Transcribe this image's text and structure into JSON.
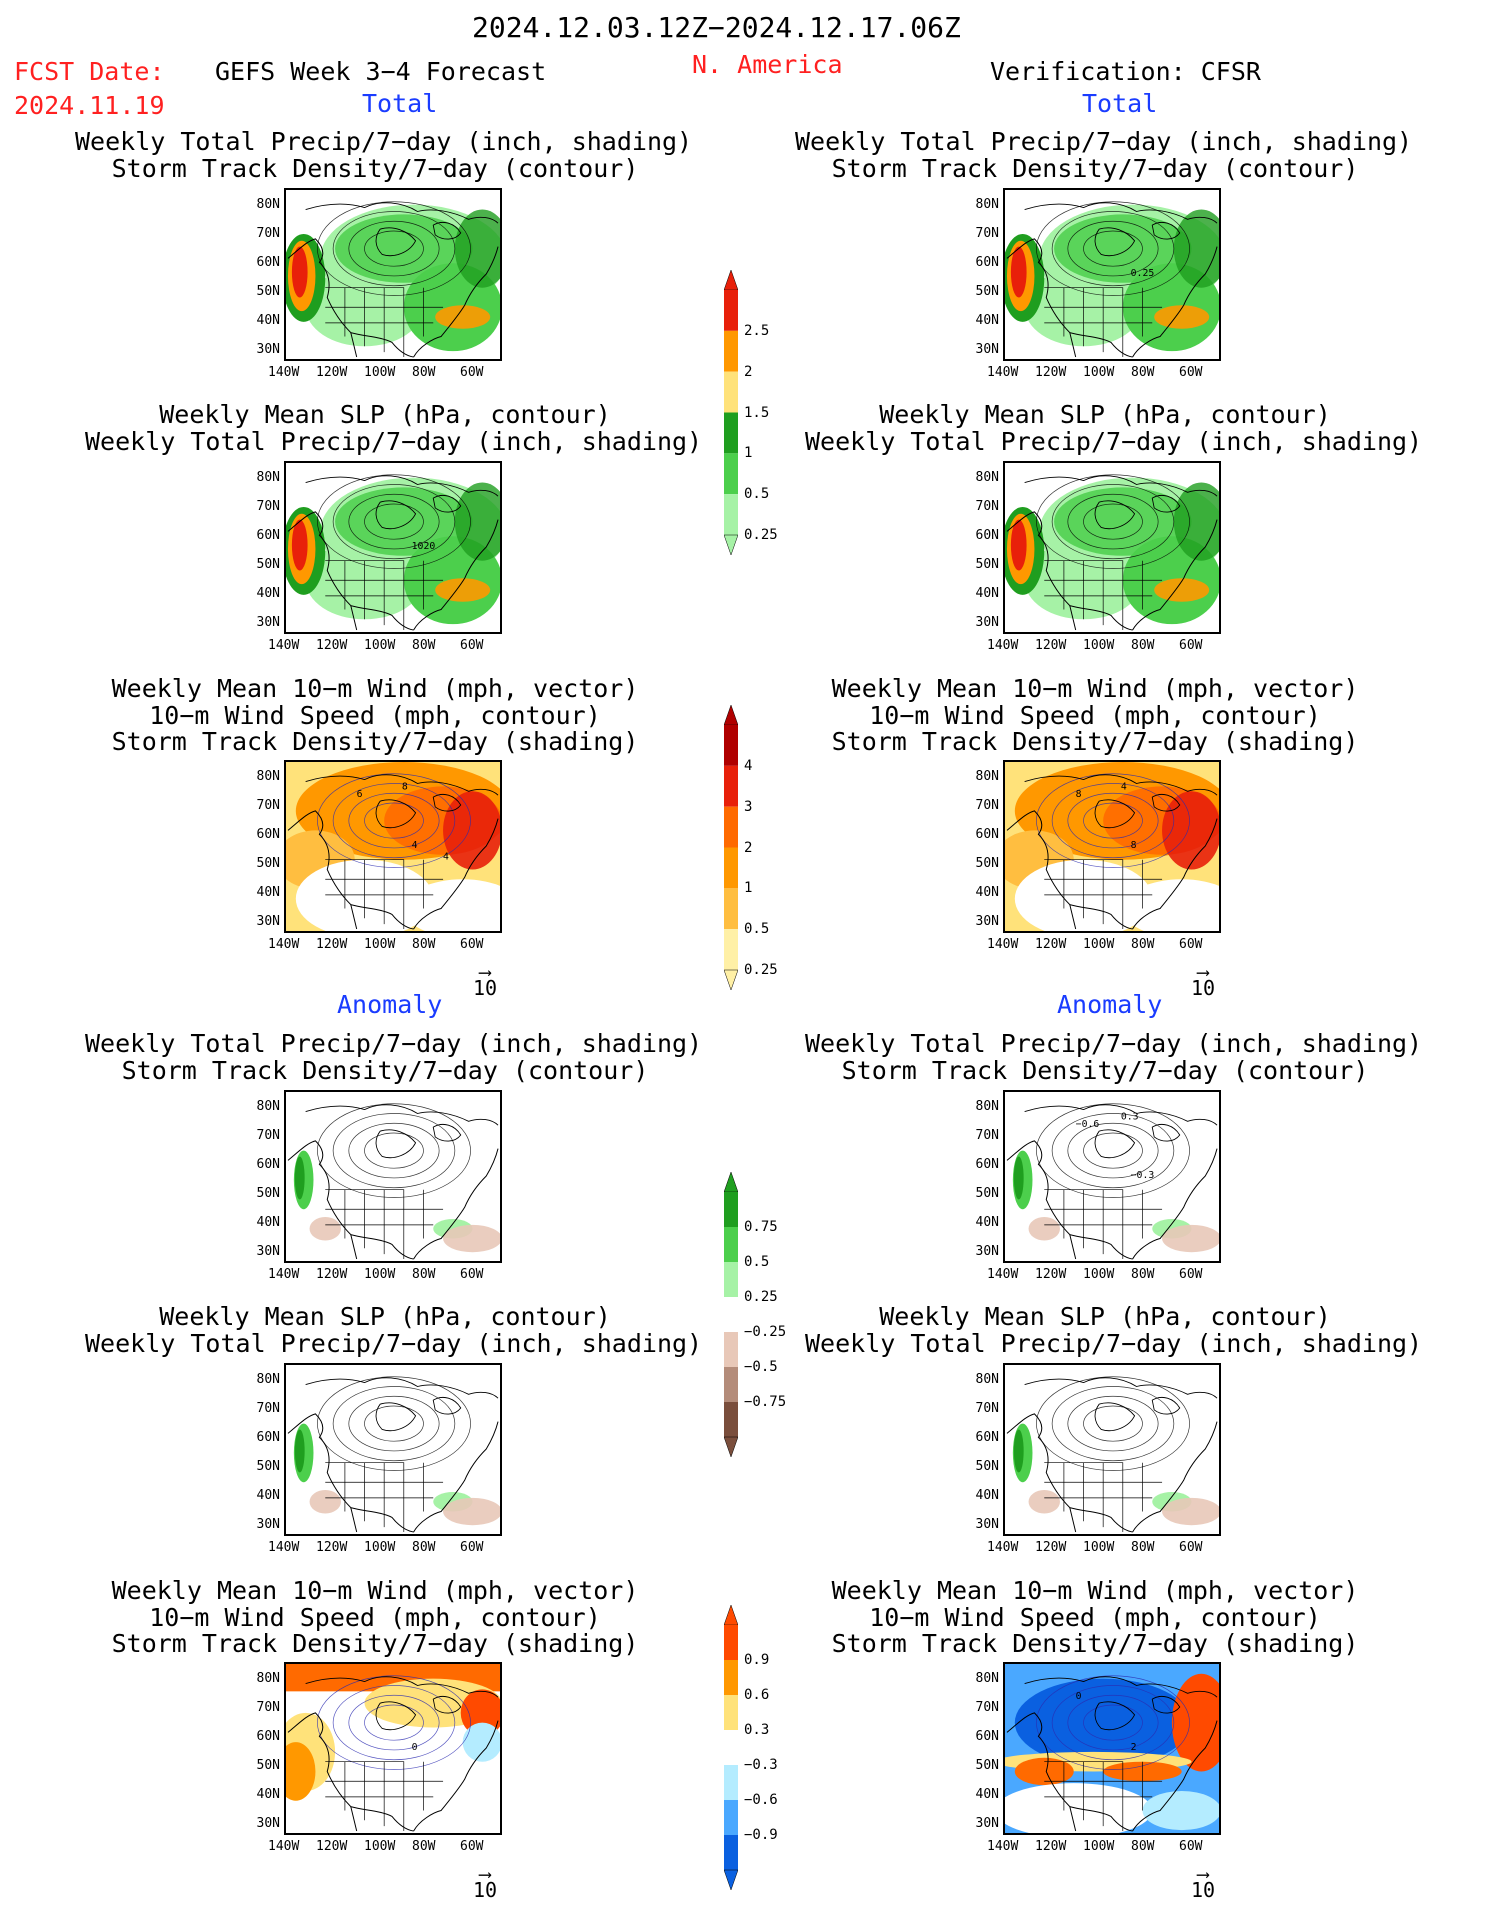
{
  "header": {
    "period": "2024.12.03.12Z−2024.12.17.06Z",
    "fcst_label": "FCST Date:",
    "fcst_date": "2024.11.19",
    "model": "GEFS Week 3−4 Forecast",
    "region": "N. America",
    "verification": "Verification: CFSR"
  },
  "sections": {
    "total_left": "Total",
    "total_right": "Total",
    "anom_left": "Anomaly",
    "anom_right": "Anomaly"
  },
  "titles": {
    "precip_storm": [
      "Weekly Total Precip/7−day (inch, shading)",
      "Storm Track Density/7−day (contour)"
    ],
    "slp_precip": [
      "Weekly Mean SLP (hPa, contour)",
      "Weekly Total Precip/7−day (inch, shading)"
    ],
    "wind_storm": [
      "Weekly Mean 10−m Wind (mph, vector)",
      "10−m Wind Speed (mph, contour)",
      "Storm Track Density/7−day (shading)"
    ]
  },
  "axes": {
    "lat": [
      "80N",
      "70N",
      "60N",
      "50N",
      "40N",
      "30N"
    ],
    "lon": [
      "140W",
      "120W",
      "100W",
      "80W",
      "60W"
    ]
  },
  "vector_ref": "10",
  "colorbars": {
    "precip_total": {
      "ticks": [
        "2.5",
        "2",
        "1.5",
        "1",
        "0.5",
        "0.25"
      ],
      "colors": [
        "#e8200a",
        "#ff9800",
        "#ffe27a",
        "#1f9e1f",
        "#4ccf4c",
        "#a6f2a6"
      ]
    },
    "storm_total": {
      "ticks": [
        "4",
        "3",
        "2",
        "1",
        "0.5",
        "0.25"
      ],
      "colors": [
        "#b00000",
        "#e8200a",
        "#ff6a00",
        "#ff9800",
        "#ffbe40",
        "#fff0a6"
      ]
    },
    "precip_anom": {
      "ticks": [
        "0.75",
        "0.5",
        "0.25",
        "−0.25",
        "−0.5",
        "−0.75"
      ],
      "colors": [
        "#1f9e1f",
        "#4ccf4c",
        "#a6f2a6",
        "#ffffff",
        "#e8c8b8",
        "#b48c7a",
        "#7a4e3c"
      ]
    },
    "storm_anom": {
      "ticks": [
        "0.9",
        "0.6",
        "0.3",
        "−0.3",
        "−0.6",
        "−0.9"
      ],
      "colors": [
        "#ff4a00",
        "#ff9800",
        "#ffe27a",
        "#ffffff",
        "#b4ecff",
        "#4aa8ff",
        "#0a60e0"
      ]
    }
  },
  "panels": [
    {
      "id": "p1",
      "kind": "precip",
      "labels": []
    },
    {
      "id": "p2",
      "kind": "precip",
      "labels": [
        "0.25"
      ]
    },
    {
      "id": "p3",
      "kind": "precip",
      "labels": [
        "1020"
      ]
    },
    {
      "id": "p4",
      "kind": "precip",
      "labels": []
    },
    {
      "id": "p5",
      "kind": "storm",
      "labels": [
        "4",
        "6",
        "8",
        "4"
      ]
    },
    {
      "id": "p6",
      "kind": "storm",
      "labels": [
        "8",
        "8",
        "4"
      ]
    },
    {
      "id": "p7",
      "kind": "panom",
      "labels": []
    },
    {
      "id": "p8",
      "kind": "panom",
      "labels": [
        "−0.3",
        "−0.6",
        "0.3"
      ]
    },
    {
      "id": "p9",
      "kind": "panom",
      "labels": []
    },
    {
      "id": "p10",
      "kind": "panom",
      "labels": []
    },
    {
      "id": "p11",
      "kind": "sanom",
      "labels": [
        "0"
      ]
    },
    {
      "id": "p12",
      "kind": "sanom2",
      "labels": [
        "2",
        "0"
      ]
    }
  ]
}
